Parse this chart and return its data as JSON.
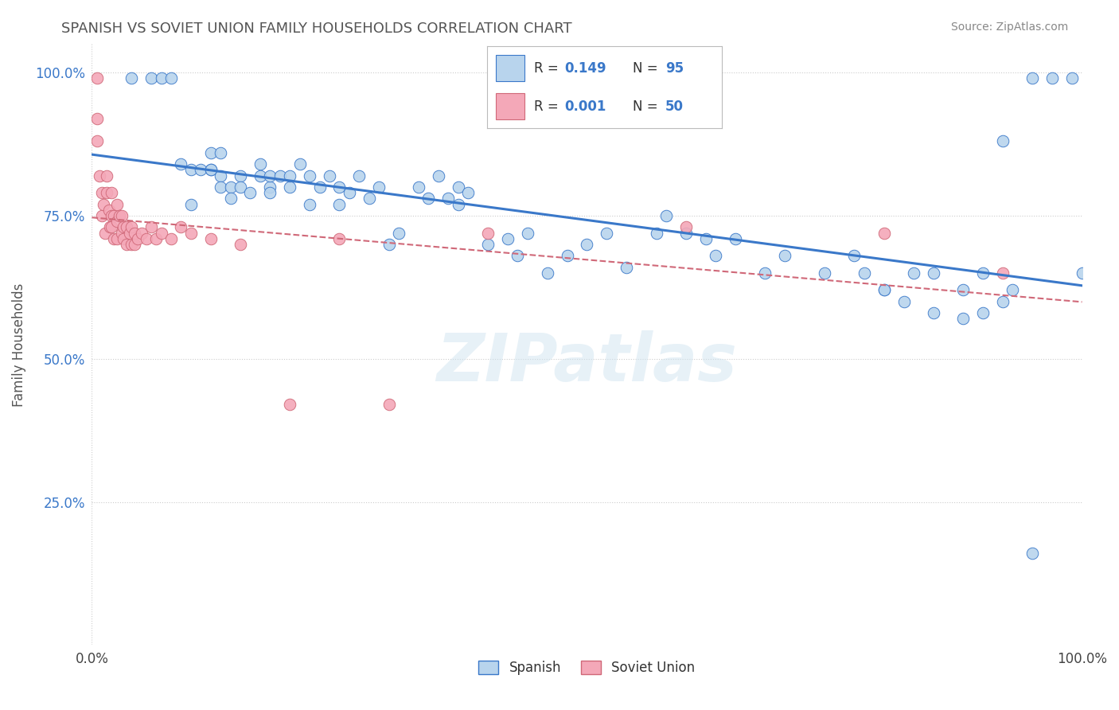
{
  "title": "SPANISH VS SOVIET UNION FAMILY HOUSEHOLDS CORRELATION CHART",
  "source": "Source: ZipAtlas.com",
  "ylabel": "Family Households",
  "xlim": [
    0.0,
    1.0
  ],
  "ylim": [
    0.0,
    1.05
  ],
  "xtick_labels": [
    "0.0%",
    "100.0%"
  ],
  "ytick_labels": [
    "25.0%",
    "50.0%",
    "75.0%",
    "100.0%"
  ],
  "ytick_positions": [
    0.25,
    0.5,
    0.75,
    1.0
  ],
  "spanish_color": "#b8d4ed",
  "soviet_color": "#f4a8b8",
  "spanish_line_color": "#3a78c9",
  "soviet_line_color": "#d06878",
  "background_color": "#ffffff",
  "grid_color": "#cccccc",
  "title_color": "#555555",
  "watermark": "ZIPatlas",
  "spanish_scatter_x": [
    0.04,
    0.06,
    0.07,
    0.08,
    0.09,
    0.1,
    0.1,
    0.11,
    0.12,
    0.12,
    0.12,
    0.13,
    0.13,
    0.13,
    0.14,
    0.14,
    0.15,
    0.15,
    0.16,
    0.17,
    0.17,
    0.18,
    0.18,
    0.18,
    0.19,
    0.2,
    0.2,
    0.21,
    0.22,
    0.22,
    0.23,
    0.24,
    0.25,
    0.25,
    0.26,
    0.27,
    0.28,
    0.29,
    0.3,
    0.31,
    0.33,
    0.34,
    0.35,
    0.36,
    0.37,
    0.37,
    0.38,
    0.4,
    0.42,
    0.43,
    0.44,
    0.46,
    0.48,
    0.5,
    0.52,
    0.54,
    0.57,
    0.58,
    0.6,
    0.62,
    0.63,
    0.65,
    0.68,
    0.7,
    0.74,
    0.77,
    0.8,
    0.83,
    0.85,
    0.88,
    0.9,
    0.92,
    0.95,
    0.97,
    0.99,
    1.0,
    0.93,
    0.95,
    0.78,
    0.8,
    0.82,
    0.85,
    0.88,
    0.9,
    0.92
  ],
  "spanish_scatter_y": [
    0.99,
    0.99,
    0.99,
    0.99,
    0.84,
    0.83,
    0.77,
    0.83,
    0.83,
    0.86,
    0.83,
    0.82,
    0.8,
    0.86,
    0.8,
    0.78,
    0.82,
    0.8,
    0.79,
    0.82,
    0.84,
    0.8,
    0.82,
    0.79,
    0.82,
    0.8,
    0.82,
    0.84,
    0.82,
    0.77,
    0.8,
    0.82,
    0.8,
    0.77,
    0.79,
    0.82,
    0.78,
    0.8,
    0.7,
    0.72,
    0.8,
    0.78,
    0.82,
    0.78,
    0.8,
    0.77,
    0.79,
    0.7,
    0.71,
    0.68,
    0.72,
    0.65,
    0.68,
    0.7,
    0.72,
    0.66,
    0.72,
    0.75,
    0.72,
    0.71,
    0.68,
    0.71,
    0.65,
    0.68,
    0.65,
    0.68,
    0.62,
    0.65,
    0.65,
    0.62,
    0.65,
    0.88,
    0.99,
    0.99,
    0.99,
    0.65,
    0.62,
    0.16,
    0.65,
    0.62,
    0.6,
    0.58,
    0.57,
    0.58,
    0.6
  ],
  "soviet_scatter_x": [
    0.005,
    0.005,
    0.005,
    0.008,
    0.01,
    0.01,
    0.012,
    0.013,
    0.015,
    0.015,
    0.017,
    0.018,
    0.02,
    0.02,
    0.02,
    0.022,
    0.022,
    0.025,
    0.025,
    0.025,
    0.028,
    0.03,
    0.03,
    0.032,
    0.032,
    0.035,
    0.035,
    0.038,
    0.04,
    0.04,
    0.043,
    0.043,
    0.046,
    0.05,
    0.055,
    0.06,
    0.065,
    0.07,
    0.08,
    0.09,
    0.1,
    0.12,
    0.15,
    0.2,
    0.25,
    0.3,
    0.4,
    0.6,
    0.8,
    0.92
  ],
  "soviet_scatter_y": [
    0.99,
    0.92,
    0.88,
    0.82,
    0.79,
    0.75,
    0.77,
    0.72,
    0.82,
    0.79,
    0.76,
    0.73,
    0.79,
    0.75,
    0.73,
    0.75,
    0.71,
    0.77,
    0.74,
    0.71,
    0.75,
    0.75,
    0.72,
    0.73,
    0.71,
    0.73,
    0.7,
    0.72,
    0.73,
    0.7,
    0.72,
    0.7,
    0.71,
    0.72,
    0.71,
    0.73,
    0.71,
    0.72,
    0.71,
    0.73,
    0.72,
    0.71,
    0.7,
    0.42,
    0.71,
    0.42,
    0.72,
    0.73,
    0.72,
    0.65
  ]
}
